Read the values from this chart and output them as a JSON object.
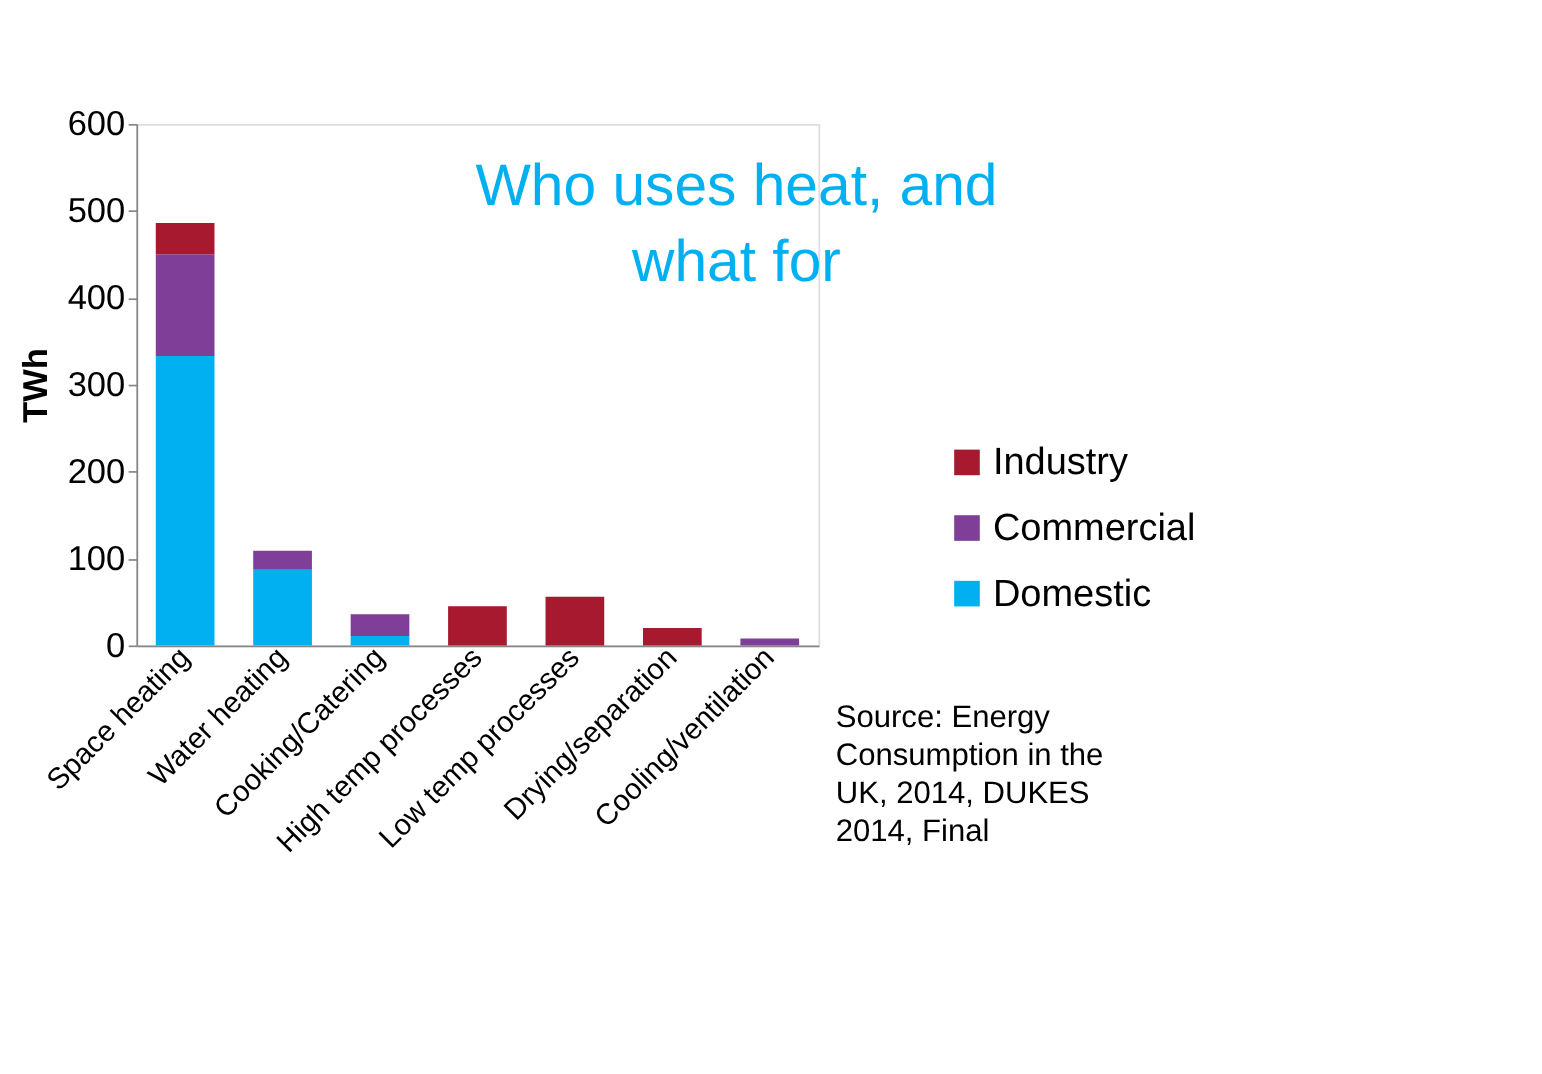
{
  "chart_data": {
    "type": "bar",
    "title": "Who uses heat, and what for",
    "ylabel": "TWh",
    "categories": [
      "Space heating",
      "Water heating",
      "Cooking/Catering",
      "High temp processes",
      "Low temp processes",
      "Drying/separation",
      "Cooling/ventilation"
    ],
    "stacked": true,
    "series": [
      {
        "name": "Domestic",
        "color": "#00b0f0",
        "values": [
          333,
          87,
          11,
          0,
          0,
          0,
          0
        ]
      },
      {
        "name": "Commercial",
        "color": "#7f3f98",
        "values": [
          117,
          22,
          25,
          0,
          0,
          0,
          8
        ]
      },
      {
        "name": "Industry",
        "color": "#a6192e",
        "values": [
          36,
          0,
          0,
          45,
          56,
          20,
          0
        ]
      }
    ],
    "ylim": [
      0,
      600
    ],
    "yticks": [
      0,
      100,
      200,
      300,
      400,
      500,
      600
    ],
    "grid": false,
    "legend": "right",
    "annotations": [
      "Source: Energy Consumption in the UK, 2014, DUKES 2014, Final"
    ]
  }
}
